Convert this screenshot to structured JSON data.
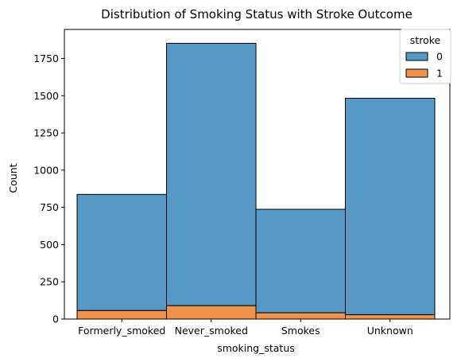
{
  "chart_data": {
    "type": "bar",
    "stacked": true,
    "title": "Distribution of Smoking Status with Stroke Outcome",
    "xlabel": "smoking_status",
    "ylabel": "Count",
    "categories": [
      "Formerly_smoked",
      "Never_smoked",
      "Smokes",
      "Unknown"
    ],
    "ylim": [
      0,
      1945
    ],
    "yticks": [
      0,
      250,
      500,
      750,
      1000,
      1250,
      1500,
      1750
    ],
    "legend": {
      "title": "stroke",
      "placement": "top-right",
      "entries": [
        "0",
        "1"
      ]
    },
    "series": [
      {
        "name": "0",
        "color": "#5799c6",
        "totals": [
          837,
          1852,
          737,
          1483
        ]
      },
      {
        "name": "1",
        "color": "#f0944d",
        "values": [
          57,
          90,
          42,
          29
        ]
      }
    ],
    "grid": false
  }
}
